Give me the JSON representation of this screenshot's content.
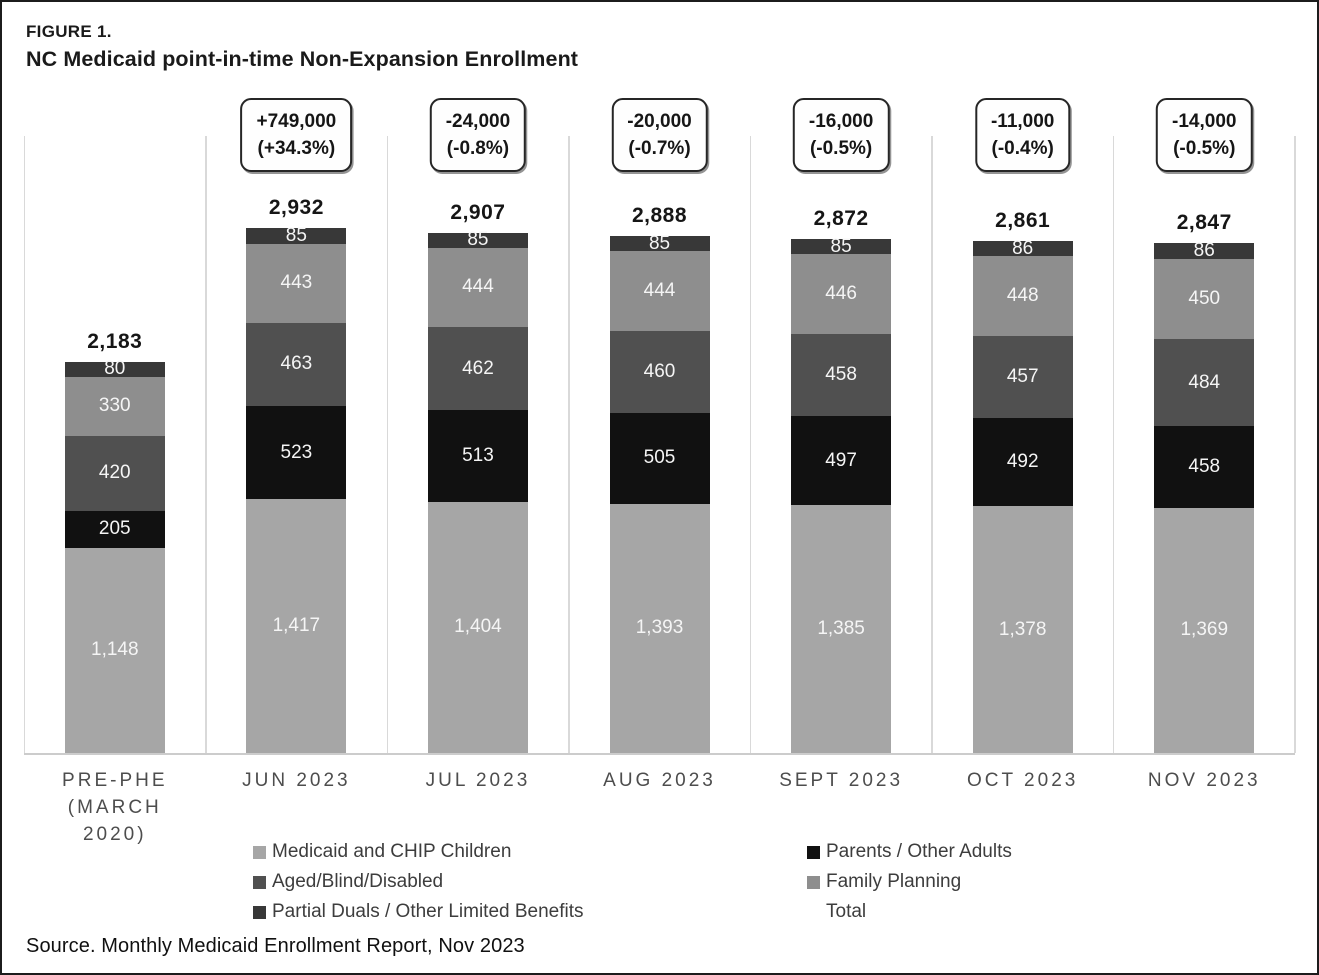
{
  "figure": {
    "label": "FIGURE 1.",
    "title": "NC Medicaid point-in-time Non-Expansion Enrollment",
    "source": "Source. Monthly Medicaid Enrollment Report, Nov 2023"
  },
  "chart_data": {
    "type": "bar",
    "stacked": true,
    "units": "thousands of enrollees",
    "title": "NC Medicaid point-in-time Non-Expansion Enrollment",
    "grid": "vertical category separators only",
    "legend_position": "bottom, two columns",
    "series": [
      {
        "name": "Medicaid and CHIP Children",
        "color": "#a6a6a6"
      },
      {
        "name": "Parents / Other Adults",
        "color": "#111111"
      },
      {
        "name": "Aged/Blind/Disabled",
        "color": "#505050"
      },
      {
        "name": "Family Planning",
        "color": "#8e8e8e"
      },
      {
        "name": "Partial Duals / Other Limited Benefits",
        "color": "#383838"
      }
    ],
    "series_order_bottom_to_top": [
      "Medicaid and CHIP Children",
      "Parents / Other Adults",
      "Aged/Blind/Disabled",
      "Family Planning",
      "Partial Duals / Other Limited Benefits"
    ],
    "bars": [
      {
        "category_lines": [
          "PRE-PHE",
          "(MARCH",
          "2020)"
        ],
        "total": 2183,
        "total_label": "2,183",
        "callout": null,
        "values": [
          1148,
          205,
          420,
          330,
          80
        ],
        "labels": [
          "1,148",
          "205",
          "420",
          "330",
          "80"
        ]
      },
      {
        "category_lines": [
          "JUN 2023"
        ],
        "total": 2932,
        "total_label": "2,932",
        "callout": {
          "line1": "+749,000",
          "line2": "(+34.3%)"
        },
        "values": [
          1417,
          523,
          463,
          443,
          85
        ],
        "labels": [
          "1,417",
          "523",
          "463",
          "443",
          "85"
        ]
      },
      {
        "category_lines": [
          "JUL 2023"
        ],
        "total": 2907,
        "total_label": "2,907",
        "callout": {
          "line1": "-24,000",
          "line2": "(-0.8%)"
        },
        "values": [
          1404,
          513,
          462,
          444,
          85
        ],
        "labels": [
          "1,404",
          "513",
          "462",
          "444",
          "85"
        ]
      },
      {
        "category_lines": [
          "AUG 2023"
        ],
        "total": 2888,
        "total_label": "2,888",
        "callout": {
          "line1": "-20,000",
          "line2": "(-0.7%)"
        },
        "values": [
          1393,
          505,
          460,
          444,
          85
        ],
        "labels": [
          "1,393",
          "505",
          "460",
          "444",
          "85"
        ]
      },
      {
        "category_lines": [
          "SEPT 2023"
        ],
        "total": 2872,
        "total_label": "2,872",
        "callout": {
          "line1": "-16,000",
          "line2": "(-0.5%)"
        },
        "values": [
          1385,
          497,
          458,
          446,
          85
        ],
        "labels": [
          "1,385",
          "497",
          "458",
          "446",
          "85"
        ]
      },
      {
        "category_lines": [
          "OCT 2023"
        ],
        "total": 2861,
        "total_label": "2,861",
        "callout": {
          "line1": "-11,000",
          "line2": "(-0.4%)"
        },
        "values": [
          1378,
          492,
          457,
          448,
          86
        ],
        "labels": [
          "1,378",
          "492",
          "457",
          "448",
          "86"
        ]
      },
      {
        "category_lines": [
          "NOV 2023"
        ],
        "total": 2847,
        "total_label": "2,847",
        "callout": {
          "line1": "-14,000",
          "line2": "(-0.5%)"
        },
        "values": [
          1369,
          458,
          484,
          450,
          86
        ],
        "labels": [
          "1,369",
          "458",
          "484",
          "450",
          "86"
        ]
      }
    ],
    "legend": {
      "left": [
        {
          "label": "Medicaid and CHIP Children",
          "series": "Medicaid and CHIP Children"
        },
        {
          "label": "Aged/Blind/Disabled",
          "series": "Aged/Blind/Disabled"
        },
        {
          "label": "Partial Duals / Other Limited Benefits",
          "series": "Partial Duals / Other Limited Benefits"
        }
      ],
      "right": [
        {
          "label": "Parents / Other Adults",
          "series": "Parents / Other Adults"
        },
        {
          "label": "Family Planning",
          "series": "Family Planning"
        },
        {
          "label": "Total",
          "series": null
        }
      ]
    }
  }
}
